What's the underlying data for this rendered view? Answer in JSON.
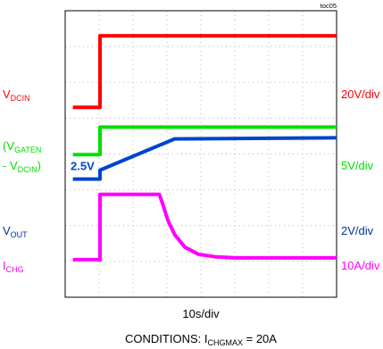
{
  "chart_data": {
    "type": "line",
    "fig_id": "toc05",
    "x_scale": "10s/div",
    "conditions": {
      "prefix": "CONDITIONS: I",
      "sub": "CHGMAX",
      "suffix": " = 20A"
    },
    "x_divisions": 8,
    "y_divisions": 8,
    "grid": true,
    "series": [
      {
        "name_main": "V",
        "name_sub": "DCIN",
        "name_after": "",
        "scale": "20V/div",
        "color": "#ff0000",
        "points": [
          [
            -0.8,
            5.3
          ],
          [
            0,
            5.3
          ],
          [
            0,
            7.3
          ],
          [
            8,
            7.3
          ]
        ]
      },
      {
        "name_main": "(V",
        "name_sub": "GATEN",
        "name_after": "",
        "name2_main": "- V",
        "name2_sub": "DCIN",
        "name2_after": ")",
        "scale": "5V/div",
        "color": "#00e000",
        "points": [
          [
            -0.8,
            3.98
          ],
          [
            0,
            3.98
          ],
          [
            0,
            4.75
          ],
          [
            8,
            4.75
          ]
        ]
      },
      {
        "name_main": "V",
        "name_sub": "OUT",
        "name_after": "",
        "scale": "2V/div",
        "color": "#0044cc",
        "annotation": "2.5V",
        "points": [
          [
            -0.8,
            3.3
          ],
          [
            0,
            3.3
          ],
          [
            0,
            3.55
          ],
          [
            2.2,
            4.42
          ],
          [
            8,
            4.45
          ]
        ]
      },
      {
        "name_main": "I",
        "name_sub": "CHG",
        "name_after": "",
        "scale": "10A/div",
        "color": "#ff00ff",
        "points": [
          [
            -0.8,
            1.05
          ],
          [
            0,
            1.05
          ],
          [
            0,
            2.87
          ],
          [
            1.75,
            2.87
          ],
          [
            1.85,
            2.6
          ],
          [
            2.0,
            2.15
          ],
          [
            2.2,
            1.75
          ],
          [
            2.5,
            1.4
          ],
          [
            2.9,
            1.2
          ],
          [
            3.4,
            1.13
          ],
          [
            4,
            1.1
          ],
          [
            8,
            1.1
          ]
        ]
      }
    ]
  }
}
